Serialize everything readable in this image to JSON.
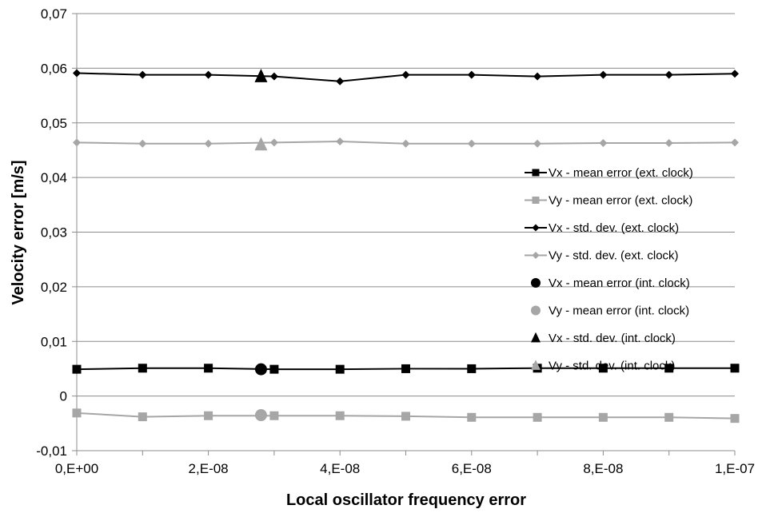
{
  "chart_data": {
    "type": "line",
    "title": "",
    "xlabel": "Local oscillator frequency error",
    "ylabel": "Velocity error [m/s]",
    "xlim": [
      0,
      1e-07
    ],
    "ylim": [
      -0.01,
      0.07
    ],
    "x_ticks": [
      {
        "value": 0,
        "label": "0,E+00"
      },
      {
        "value": 2e-08,
        "label": "2,E-08"
      },
      {
        "value": 4e-08,
        "label": "4,E-08"
      },
      {
        "value": 6e-08,
        "label": "6,E-08"
      },
      {
        "value": 8e-08,
        "label": "8,E-08"
      },
      {
        "value": 1e-07,
        "label": "1,E-07"
      }
    ],
    "y_ticks": [
      {
        "value": -0.01,
        "label": "-0,01"
      },
      {
        "value": 0,
        "label": "0"
      },
      {
        "value": 0.01,
        "label": "0,01"
      },
      {
        "value": 0.02,
        "label": "0,02"
      },
      {
        "value": 0.03,
        "label": "0,03"
      },
      {
        "value": 0.04,
        "label": "0,04"
      },
      {
        "value": 0.05,
        "label": "0,05"
      },
      {
        "value": 0.06,
        "label": "0,06"
      },
      {
        "value": 0.07,
        "label": "0,07"
      }
    ],
    "grid": "horizontal",
    "legend_position": "right",
    "series": [
      {
        "name": "Vx - mean error (ext. clock)",
        "color": "#000000",
        "marker": "square",
        "line": true,
        "x": [
          0,
          1e-08,
          2e-08,
          3e-08,
          4e-08,
          5e-08,
          6e-08,
          7e-08,
          8e-08,
          9e-08,
          1e-07
        ],
        "y": [
          0.0049,
          0.0051,
          0.0051,
          0.0049,
          0.0049,
          0.005,
          0.005,
          0.0051,
          0.0051,
          0.0051,
          0.0051
        ]
      },
      {
        "name": "Vy - mean error (ext. clock)",
        "color": "#a6a6a6",
        "marker": "square",
        "line": true,
        "x": [
          0,
          1e-08,
          2e-08,
          3e-08,
          4e-08,
          5e-08,
          6e-08,
          7e-08,
          8e-08,
          9e-08,
          1e-07
        ],
        "y": [
          -0.0031,
          -0.0038,
          -0.0036,
          -0.0036,
          -0.0036,
          -0.0037,
          -0.0039,
          -0.0039,
          -0.0039,
          -0.0039,
          -0.0041
        ]
      },
      {
        "name": "Vx - std. dev. (ext. clock)",
        "color": "#000000",
        "marker": "diamond",
        "line": true,
        "x": [
          0,
          1e-08,
          2e-08,
          3e-08,
          4e-08,
          5e-08,
          6e-08,
          7e-08,
          8e-08,
          9e-08,
          1e-07
        ],
        "y": [
          0.0591,
          0.0588,
          0.0588,
          0.0585,
          0.0576,
          0.0588,
          0.0588,
          0.0585,
          0.0588,
          0.0588,
          0.059
        ]
      },
      {
        "name": "Vy - std. dev. (ext. clock)",
        "color": "#a6a6a6",
        "marker": "diamond",
        "line": true,
        "x": [
          0,
          1e-08,
          2e-08,
          3e-08,
          4e-08,
          5e-08,
          6e-08,
          7e-08,
          8e-08,
          9e-08,
          1e-07
        ],
        "y": [
          0.0464,
          0.0462,
          0.0462,
          0.0464,
          0.0466,
          0.0462,
          0.0462,
          0.0462,
          0.0463,
          0.0463,
          0.0464
        ]
      },
      {
        "name": "Vx - mean error (int. clock)",
        "color": "#000000",
        "marker": "circle",
        "line": false,
        "x": [
          2.8e-08
        ],
        "y": [
          0.0049
        ]
      },
      {
        "name": "Vy - mean error (int. clock)",
        "color": "#a6a6a6",
        "marker": "circle",
        "line": false,
        "x": [
          2.8e-08
        ],
        "y": [
          -0.0035
        ]
      },
      {
        "name": "Vx - std. dev. (int. clock)",
        "color": "#000000",
        "marker": "triangle",
        "line": false,
        "x": [
          2.8e-08
        ],
        "y": [
          0.0585
        ]
      },
      {
        "name": "Vy - std. dev. (int. clock)",
        "color": "#a6a6a6",
        "marker": "triangle",
        "line": false,
        "x": [
          2.8e-08
        ],
        "y": [
          0.046
        ]
      }
    ]
  }
}
